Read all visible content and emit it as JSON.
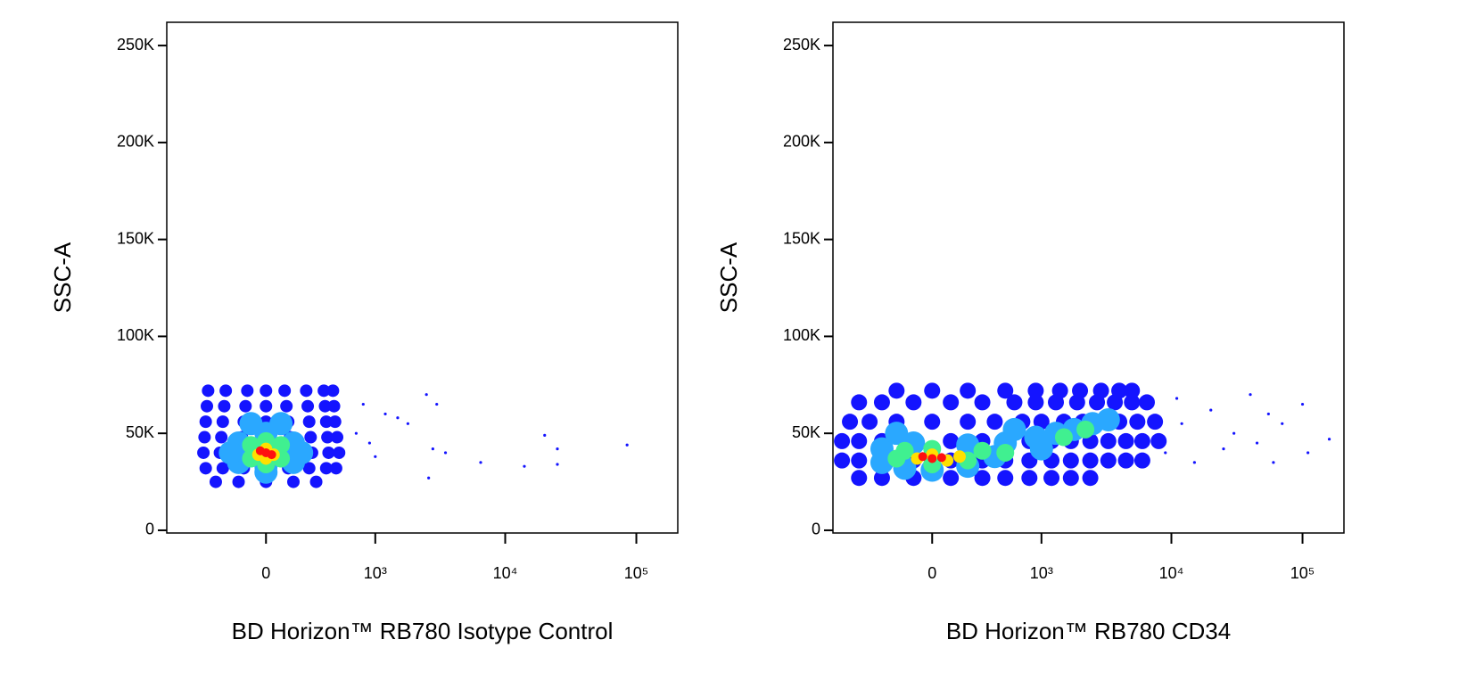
{
  "chart_data": [
    {
      "type": "scatter",
      "xlabel": "BD Horizon™ RB780 Isotype Control",
      "ylabel": "SSC-A",
      "xscale": "arcsinh",
      "xscale_cofactor": 300,
      "xlim": [
        -830,
        207000
      ],
      "ylim": [
        -1400,
        262000
      ],
      "xticks": [
        0,
        {
          "value": 1000,
          "label": "10³"
        },
        {
          "value": 10000,
          "label": "10⁴"
        },
        {
          "value": 100000,
          "label": "10⁵"
        }
      ],
      "yticks": [
        0,
        {
          "value": 50000,
          "label": "50K"
        },
        {
          "value": 100000,
          "label": "100K"
        },
        {
          "value": 150000,
          "label": "150K"
        },
        {
          "value": 200000,
          "label": "200K"
        },
        {
          "value": 250000,
          "label": "250K"
        }
      ],
      "series": [
        {
          "color": "#1414ff",
          "x": [
            -300,
            -150,
            0,
            150,
            300,
            -380,
            -250,
            -120,
            0,
            120,
            250,
            380,
            470,
            -400,
            -270,
            -130,
            130,
            270,
            400,
            500,
            -390,
            -260,
            -130,
            0,
            130,
            260,
            390,
            480,
            -380,
            -250,
            -120,
            0,
            120,
            250,
            380,
            460,
            -370,
            -240,
            -110,
            0,
            110,
            240,
            370,
            450,
            -360,
            -230,
            -100,
            0,
            100,
            230,
            360,
            440
          ],
          "y": [
            25000,
            25000,
            25000,
            25000,
            25000,
            32000,
            32000,
            32000,
            32000,
            32000,
            32000,
            32000,
            32000,
            40000,
            40000,
            40000,
            40000,
            40000,
            40000,
            40000,
            48000,
            48000,
            48000,
            48000,
            48000,
            48000,
            48000,
            48000,
            56000,
            56000,
            56000,
            56000,
            56000,
            56000,
            56000,
            56000,
            64000,
            64000,
            64000,
            64000,
            64000,
            64000,
            64000,
            64000,
            72000,
            72000,
            72000,
            72000,
            72000,
            72000,
            72000,
            72000
          ]
        },
        {
          "color": "#1414ff",
          "x": [
            700,
            900,
            1200,
            1500,
            2500,
            3000,
            2800,
            3500,
            6500,
            14000,
            20000,
            25000,
            25000,
            85000,
            1800,
            2600,
            800,
            1000
          ],
          "y": [
            50000,
            45000,
            60000,
            58000,
            70000,
            65000,
            42000,
            40000,
            35000,
            33000,
            49000,
            42000,
            34000,
            44000,
            55000,
            27000,
            65000,
            38000
          ]
        },
        {
          "color": "#2aa8ff",
          "x": [
            -150,
            -150,
            0,
            0,
            150,
            150,
            0,
            -80,
            80,
            -200,
            200,
            0
          ],
          "y": [
            35000,
            45000,
            30000,
            50000,
            35000,
            45000,
            40000,
            55000,
            55000,
            40000,
            40000,
            33000
          ]
        },
        {
          "color": "#40f090",
          "x": [
            -80,
            80,
            0,
            0,
            -80,
            80,
            0
          ],
          "y": [
            37000,
            37000,
            34000,
            46000,
            44000,
            44000,
            40000
          ]
        },
        {
          "color": "#ffe000",
          "x": [
            -40,
            40,
            0,
            0
          ],
          "y": [
            39000,
            39000,
            42000,
            37000
          ]
        },
        {
          "color": "#ff1010",
          "x": [
            0,
            30,
            -30
          ],
          "y": [
            40000,
            39000,
            41000
          ]
        }
      ]
    },
    {
      "type": "scatter",
      "xlabel": "BD Horizon™ RB780 CD34",
      "ylabel": "SSC-A",
      "xscale": "arcsinh",
      "xscale_cofactor": 300,
      "xlim": [
        -830,
        207000
      ],
      "ylim": [
        -1400,
        262000
      ],
      "xticks": [
        0,
        {
          "value": 1000,
          "label": "10³"
        },
        {
          "value": 10000,
          "label": "10⁴"
        },
        {
          "value": 100000,
          "label": "10⁵"
        }
      ],
      "yticks": [
        0,
        {
          "value": 50000,
          "label": "50K"
        },
        {
          "value": 100000,
          "label": "100K"
        },
        {
          "value": 150000,
          "label": "150K"
        },
        {
          "value": 200000,
          "label": "200K"
        },
        {
          "value": 250000,
          "label": "250K"
        }
      ],
      "series": [
        {
          "color": "#1414ff",
          "x": [
            -500,
            -300,
            -100,
            100,
            300,
            500,
            800,
            1200,
            1700,
            2400,
            -700,
            -500,
            -300,
            -100,
            100,
            300,
            500,
            800,
            1200,
            1700,
            2400,
            3300,
            4500,
            6000,
            -700,
            -500,
            -300,
            -100,
            100,
            300,
            500,
            800,
            1200,
            1700,
            2400,
            3300,
            4500,
            6000,
            8000,
            -600,
            -400,
            -200,
            0,
            200,
            400,
            700,
            1000,
            1500,
            2100,
            3000,
            4000,
            5500,
            7500,
            -500,
            -300,
            -100,
            100,
            300,
            600,
            900,
            1300,
            1900,
            2700,
            3700,
            5000,
            6500,
            -200,
            0,
            200,
            500,
            900,
            1400,
            2000,
            2900,
            4000,
            5000
          ],
          "y": [
            27000,
            27000,
            27000,
            27000,
            27000,
            27000,
            27000,
            27000,
            27000,
            27000,
            36000,
            36000,
            36000,
            36000,
            36000,
            36000,
            36000,
            36000,
            36000,
            36000,
            36000,
            36000,
            36000,
            36000,
            46000,
            46000,
            46000,
            46000,
            46000,
            46000,
            46000,
            46000,
            46000,
            46000,
            46000,
            46000,
            46000,
            46000,
            46000,
            56000,
            56000,
            56000,
            56000,
            56000,
            56000,
            56000,
            56000,
            56000,
            56000,
            56000,
            56000,
            56000,
            56000,
            66000,
            66000,
            66000,
            66000,
            66000,
            66000,
            66000,
            66000,
            66000,
            66000,
            66000,
            66000,
            66000,
            72000,
            72000,
            72000,
            72000,
            72000,
            72000,
            72000,
            72000,
            72000,
            72000
          ]
        },
        {
          "color": "#1414ff",
          "x": [
            9000,
            12000,
            15000,
            20000,
            30000,
            40000,
            45000,
            55000,
            60000,
            70000,
            100000,
            110000,
            160000,
            25000,
            11000
          ],
          "y": [
            40000,
            55000,
            35000,
            62000,
            50000,
            70000,
            45000,
            60000,
            35000,
            55000,
            65000,
            40000,
            47000,
            42000,
            68000
          ]
        },
        {
          "color": "#2aa8ff",
          "x": [
            -300,
            -150,
            0,
            200,
            400,
            -300,
            -100,
            200,
            500,
            900,
            1300,
            1800,
            2500,
            3300,
            1000,
            600,
            -200
          ],
          "y": [
            35000,
            32000,
            31000,
            33000,
            38000,
            42000,
            45000,
            44000,
            45000,
            48000,
            50000,
            52000,
            55000,
            57000,
            42000,
            52000,
            50000
          ]
        },
        {
          "color": "#40f090",
          "x": [
            -200,
            0,
            200,
            300,
            0,
            -150,
            500,
            1500,
            2200
          ],
          "y": [
            37000,
            34000,
            36000,
            41000,
            42000,
            41000,
            40000,
            48000,
            52000
          ]
        },
        {
          "color": "#ffe000",
          "x": [
            -80,
            80,
            0,
            150
          ],
          "y": [
            37000,
            36000,
            39000,
            38000
          ]
        },
        {
          "color": "#ff1010",
          "x": [
            0,
            50,
            -50
          ],
          "y": [
            37000,
            37500,
            38000
          ]
        }
      ]
    }
  ]
}
